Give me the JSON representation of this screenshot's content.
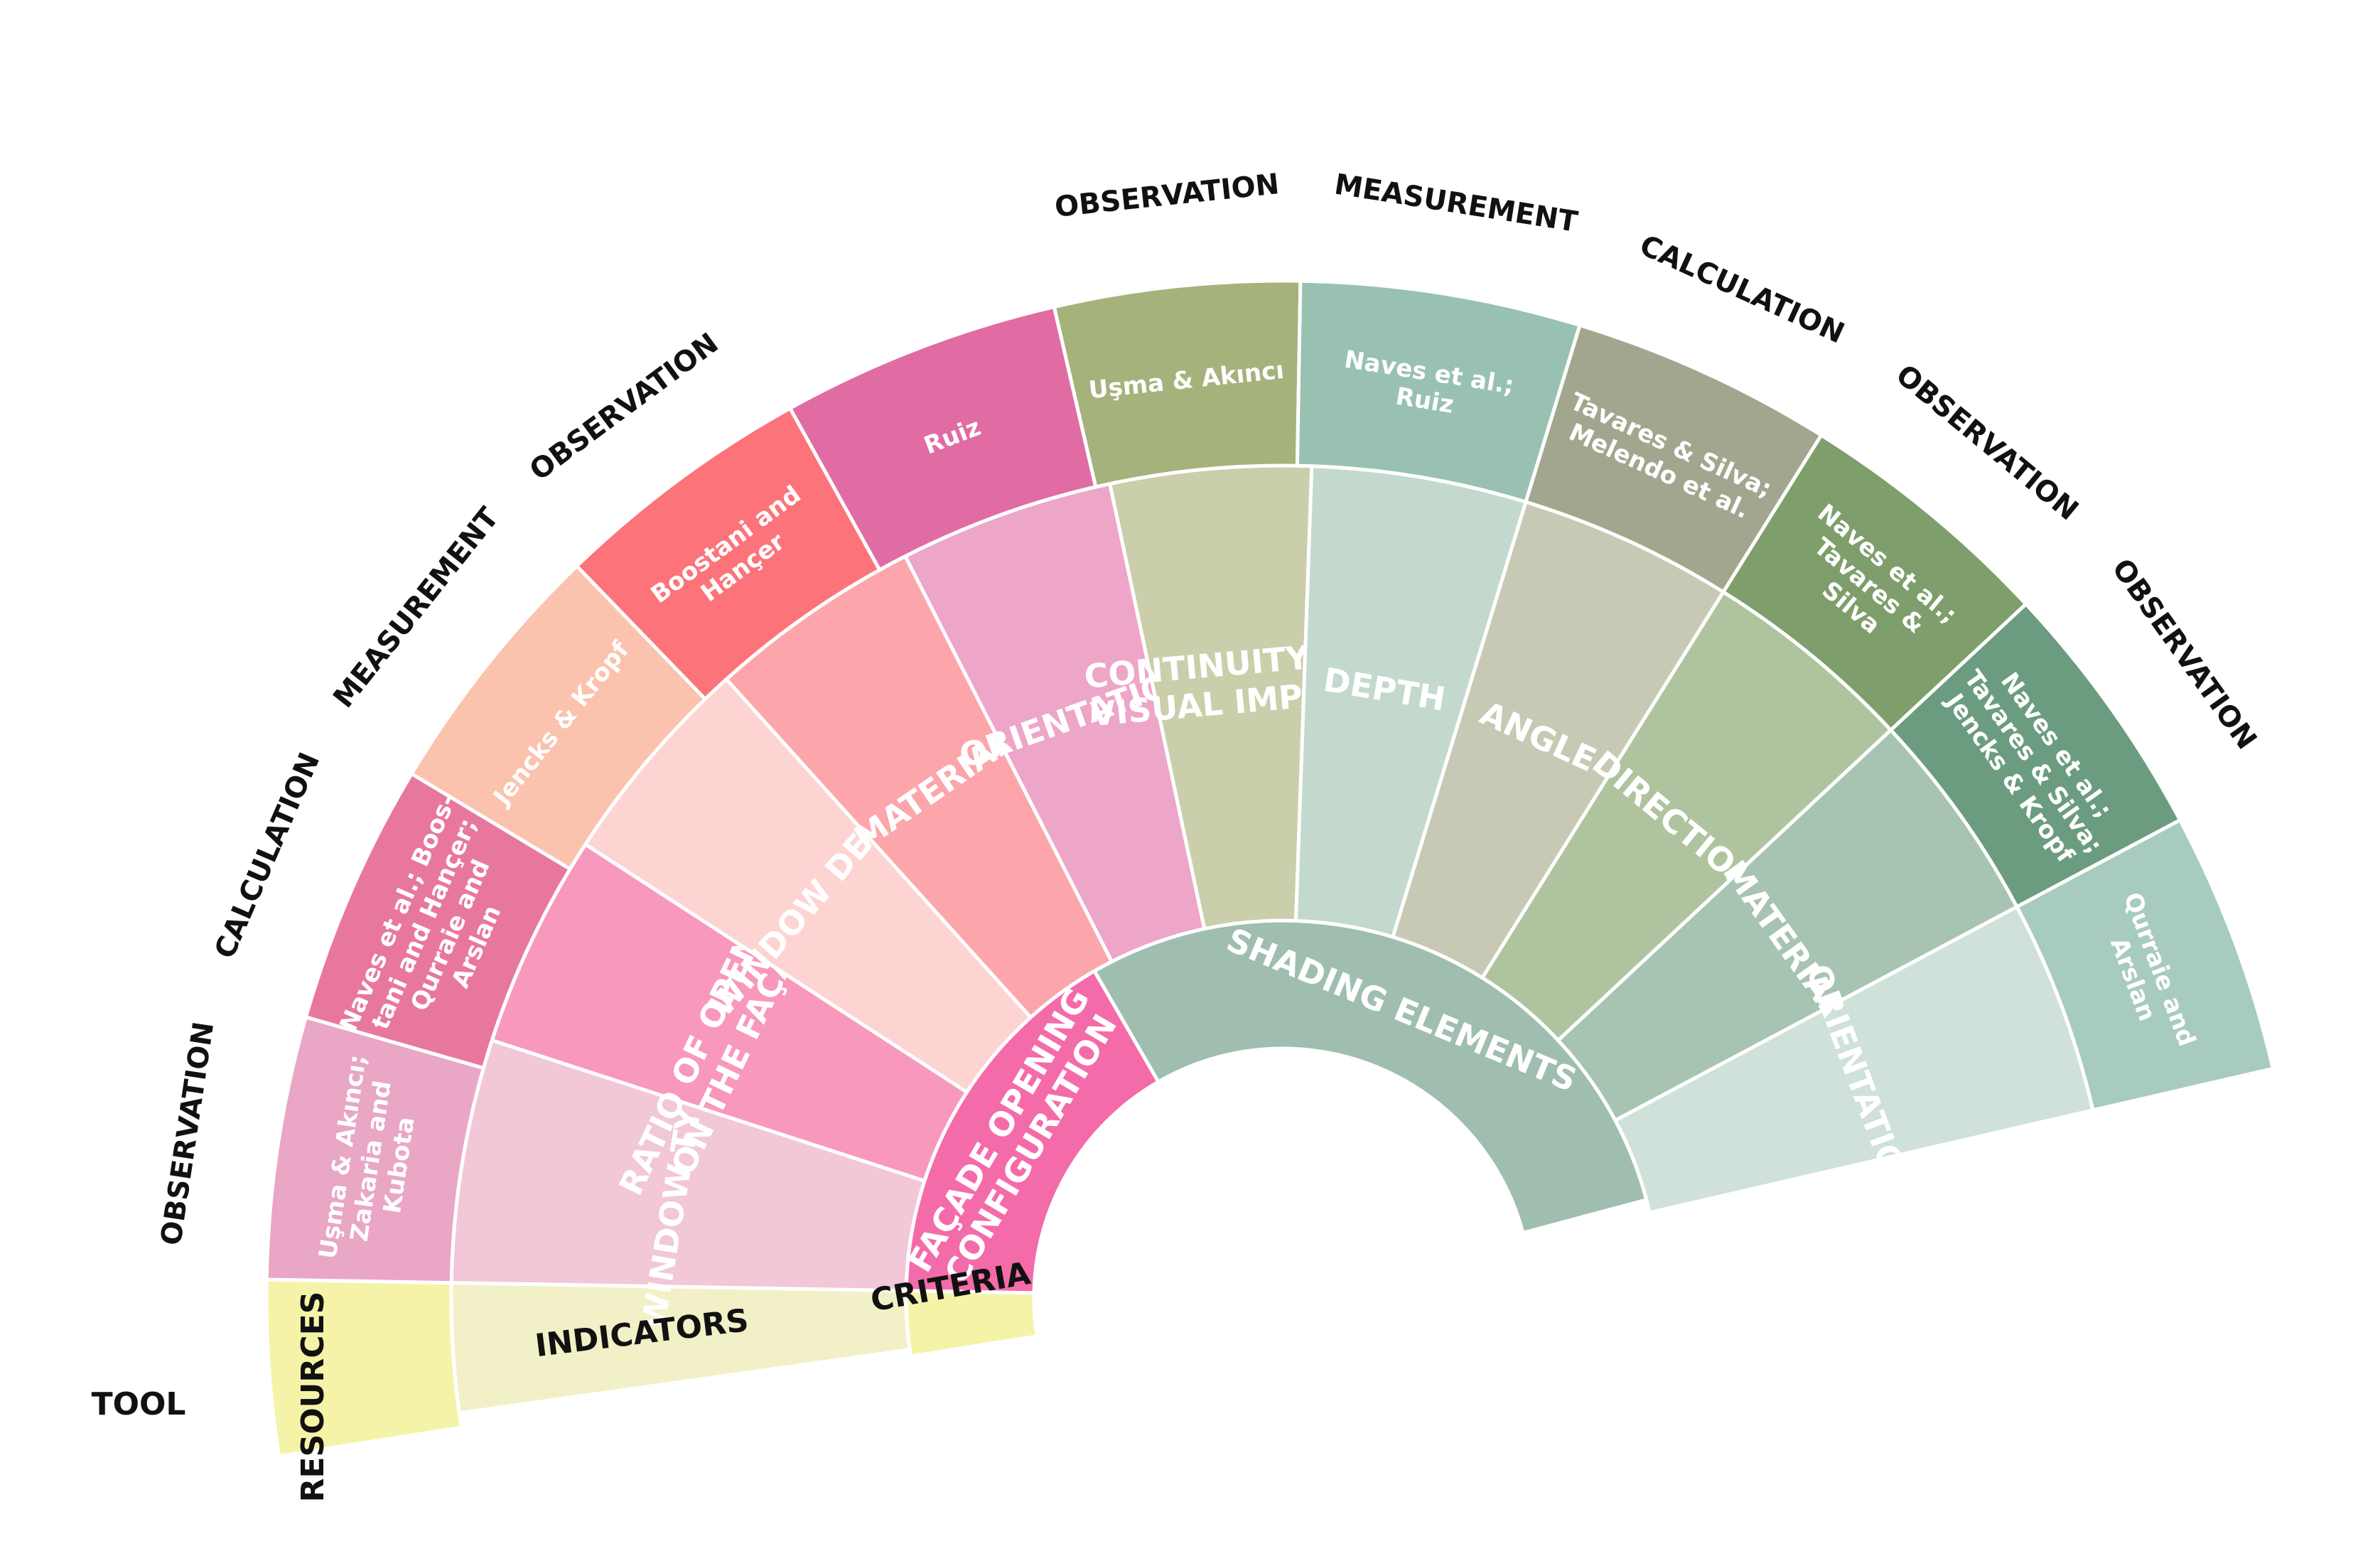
{
  "criteria": [
    {
      "label": [
        "FAÇADE OPENING",
        "CONFIGURATION"
      ],
      "color": "#F46BAA"
    },
    {
      "label": [
        "SHADING ELEMENTS"
      ],
      "color": "#9FBEAF"
    }
  ],
  "indicators": [
    {
      "label": [
        "WINDOW TYPE"
      ],
      "color": "#F2C7D8",
      "criterion": 0
    },
    {
      "label": [
        "RATIO OF OPENINGS",
        "ON THE FAÇADE"
      ],
      "color": "#F898BC",
      "criterion": 0
    },
    {
      "label": [
        "WINDOW DEPTH"
      ],
      "color": "#FDD4D2",
      "criterion": 0
    },
    {
      "label": [
        "MATERIAL"
      ],
      "color": "#FCA6AB",
      "criterion": 0
    },
    {
      "label": [
        "ORIENTATION"
      ],
      "color": "#EDA5C8",
      "criterion": 0
    },
    {
      "label": [
        "CONTINUITY OF",
        "VISUAL IMPACT"
      ],
      "color": "#CBCEAA",
      "criterion": 0
    },
    {
      "label": [
        "DEPTH"
      ],
      "color": "#C3D9CE",
      "criterion": 1
    },
    {
      "label": [
        "ANGLE"
      ],
      "color": "#C8C9B4",
      "criterion": 1
    },
    {
      "label": [
        "DIRECTION"
      ],
      "color": "#AFC49E",
      "criterion": 1
    },
    {
      "label": [
        "MATERIAL"
      ],
      "color": "#A7C3B1",
      "criterion": 1
    },
    {
      "label": [
        "ORIENTATION"
      ],
      "color": "#CFE1D8",
      "criterion": 1
    }
  ],
  "resources": [
    {
      "label": [
        "Uşma & Akıncı;",
        "Zakaria and",
        "Kubota"
      ],
      "color": "#E9A6C5",
      "tool": "OBSERVATION"
    },
    {
      "label": [
        "Naves et al.; Boos-",
        "tani and Hançer;",
        "Qurraie and",
        "Arslan"
      ],
      "color": "#E8779E",
      "tool": "CALCULATION"
    },
    {
      "label": [
        "Jencks & Kropf"
      ],
      "color": "#FBC2AE",
      "tool": "MEASUREMENT"
    },
    {
      "label": [
        "Boostani and",
        "Hançer"
      ],
      "color": "#FD737A",
      "tool": "OBSERVATION"
    },
    {
      "label": [
        "Ruiz"
      ],
      "color": "#E06CA3",
      "tool": ""
    },
    {
      "label": [
        "Uşma & Akıncı"
      ],
      "color": "#A6B27C",
      "tool": "OBSERVATION"
    },
    {
      "label": [
        "Naves et al.;",
        "Ruiz"
      ],
      "color": "#98C1B2",
      "tool": "MEASUREMENT"
    },
    {
      "label": [
        "Tavares & Silva;",
        "Melendo et al."
      ],
      "color": "#A2A68E",
      "tool": "CALCULATION"
    },
    {
      "label": [
        "Naves et al.;",
        "Tavares &",
        "Silva"
      ],
      "color": "#7E9E6B",
      "tool": "OBSERVATION"
    },
    {
      "label": [
        "Naves et al.;",
        "Tavares & Silva;",
        "Jencks & Kropf"
      ],
      "color": "#6C9C7F",
      "tool": "OBSERVATION"
    },
    {
      "label": [
        "Qurraie and",
        "Arslan"
      ],
      "color": "#A8CBC0",
      "tool": ""
    }
  ],
  "legend": {
    "tool": "TOOL",
    "resources": "RESOURCES",
    "indicators": "INDICATORS",
    "criteria": "CRITERIA",
    "color_main": "#F2F0C6",
    "color_resources": "#F5F3A8",
    "color_criteria": "#F5F3A8"
  }
}
